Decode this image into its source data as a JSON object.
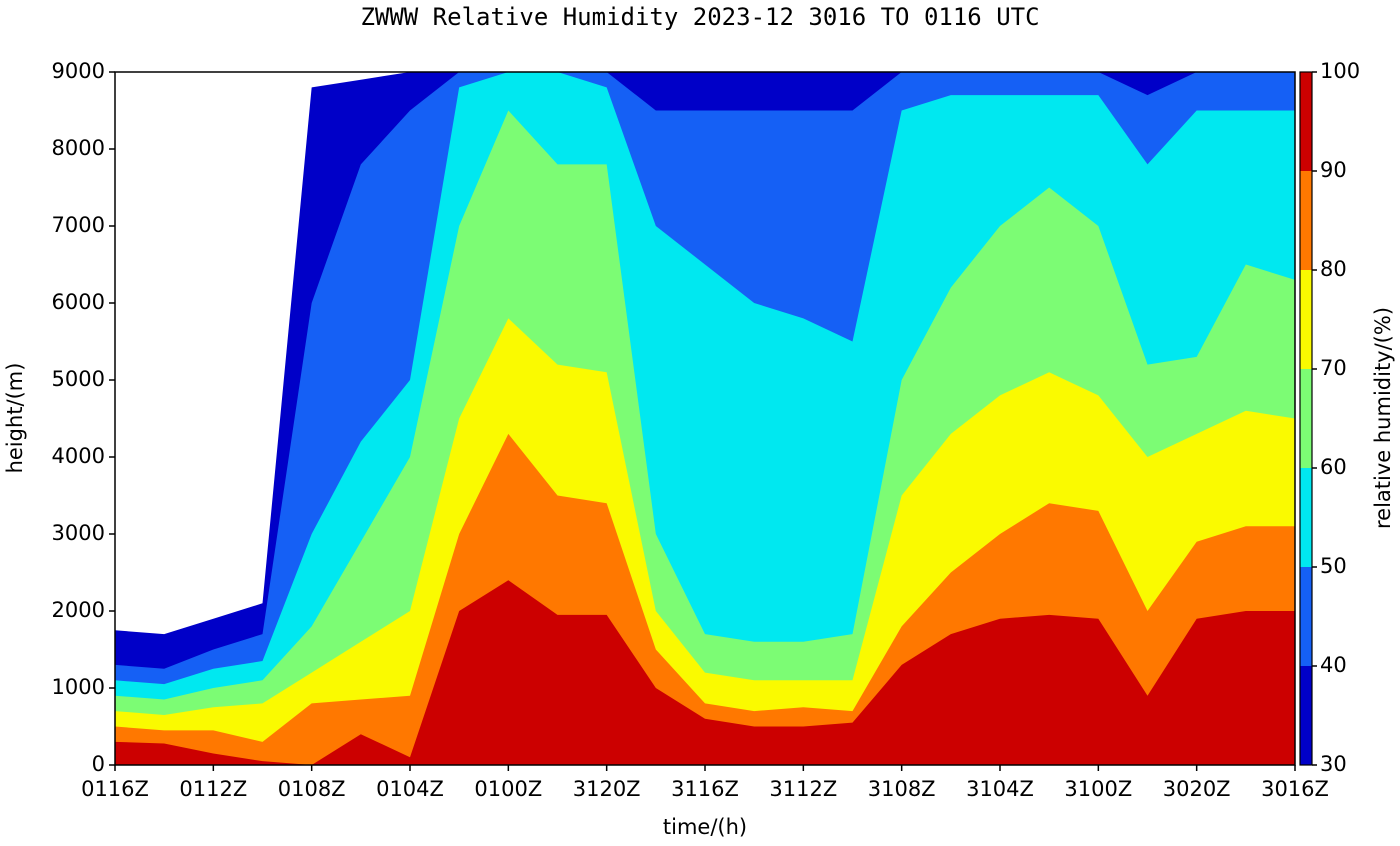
{
  "chart_data": {
    "type": "contour",
    "title": "ZWWW Relative Humidity 2023-12 3016 TO 0116 UTC",
    "x_label": "time/(h)",
    "y_label": "height/(m)",
    "colorbar_label": "relative humidity/(%)",
    "categories": [
      "0116Z",
      null,
      "0112Z",
      null,
      "0108Z",
      null,
      "0104Z",
      null,
      "0100Z",
      null,
      "3120Z",
      null,
      "3116Z",
      null,
      "3112Z",
      null,
      "3108Z",
      null,
      "3104Z",
      null,
      "3100Z",
      null,
      "3020Z",
      null,
      "3016Z"
    ],
    "ylim": [
      0,
      9000
    ],
    "yticks": [
      0,
      1000,
      2000,
      3000,
      4000,
      5000,
      6000,
      7000,
      8000,
      9000
    ],
    "clim": [
      30,
      100
    ],
    "cticks": [
      30,
      40,
      50,
      60,
      70,
      80,
      90,
      100
    ],
    "series": [
      {
        "color": "#0000c8",
        "values": [
          1750,
          1700,
          1900,
          2100,
          8800,
          8900,
          9000,
          9000,
          9000,
          9000,
          9000,
          9000,
          9000,
          9000,
          9000,
          9000,
          9000,
          9000,
          9000,
          9000,
          9000,
          9000,
          9000,
          9000,
          9000
        ]
      },
      {
        "color": "#1560f5",
        "values": [
          1300,
          1250,
          1500,
          1700,
          6000,
          7800,
          8500,
          9000,
          9000,
          9000,
          9000,
          8500,
          8500,
          8500,
          8500,
          8500,
          9000,
          9000,
          9000,
          9000,
          9000,
          8700,
          9000,
          9000,
          9000
        ]
      },
      {
        "color": "#00e8f0",
        "values": [
          1100,
          1050,
          1250,
          1350,
          3000,
          4200,
          5000,
          8800,
          9000,
          9000,
          8800,
          7000,
          6500,
          6000,
          5800,
          5500,
          8500,
          8700,
          8700,
          8700,
          8700,
          7800,
          8500,
          8500,
          8500
        ]
      },
      {
        "color": "#7cfc74",
        "values": [
          900,
          850,
          1000,
          1100,
          1800,
          2900,
          4000,
          7000,
          8500,
          7800,
          7800,
          3000,
          1700,
          1600,
          1600,
          1700,
          5000,
          6200,
          7000,
          7500,
          7000,
          5200,
          5300,
          6500,
          6300
        ]
      },
      {
        "color": "#fafa00",
        "values": [
          700,
          650,
          750,
          800,
          1200,
          1600,
          2000,
          4500,
          5800,
          5200,
          5100,
          2000,
          1200,
          1100,
          1100,
          1100,
          3500,
          4300,
          4800,
          5100,
          4800,
          4000,
          4300,
          4600,
          4500
        ]
      },
      {
        "color": "#ff7800",
        "values": [
          500,
          450,
          450,
          300,
          800,
          850,
          900,
          3000,
          4300,
          3500,
          3400,
          1500,
          800,
          700,
          750,
          700,
          1800,
          2500,
          3000,
          3400,
          3300,
          2000,
          2900,
          3100,
          3100
        ]
      },
      {
        "color": "#cc0000",
        "values": [
          300,
          280,
          150,
          50,
          0,
          400,
          100,
          2000,
          2400,
          1950,
          1950,
          1000,
          600,
          500,
          500,
          550,
          1300,
          1700,
          1900,
          1950,
          1900,
          900,
          1900,
          2000,
          2000
        ]
      }
    ]
  }
}
